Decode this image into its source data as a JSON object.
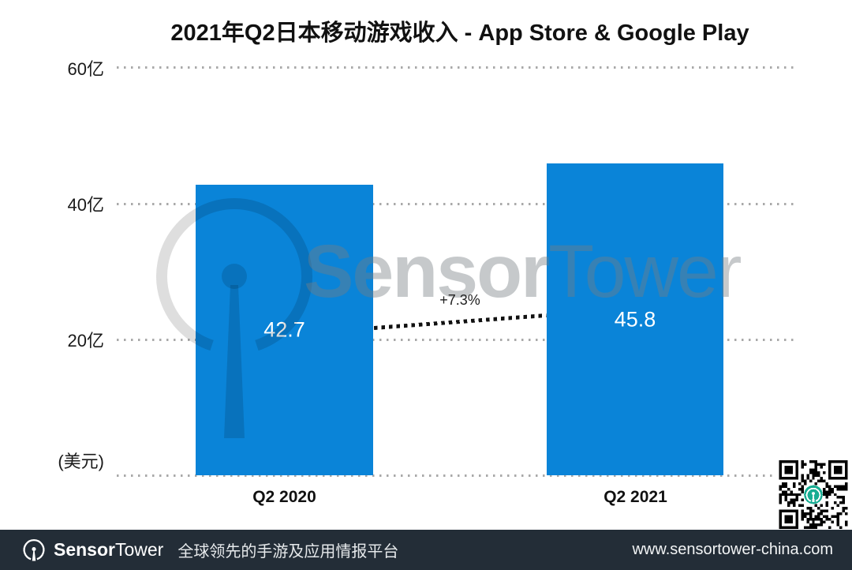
{
  "title": "2021年Q2日本移动游戏收入 - App Store & Google Play",
  "chart_data": {
    "type": "bar",
    "categories": [
      "Q2 2020",
      "Q2 2021"
    ],
    "values": [
      42.7,
      45.8
    ],
    "title": "2021年Q2日本移动游戏收入 - App Store & Google Play",
    "xlabel": "",
    "ylabel": "(美元)",
    "ylim": [
      0,
      60
    ],
    "yticks": [
      "60亿",
      "40亿",
      "20亿"
    ],
    "y_unit_label": "(美元)",
    "grid": "dotted horizontal",
    "growth_annotation": "+7.3%",
    "bar_color": "#0a84d8",
    "value_label_color": "#ffffff"
  },
  "watermark": {
    "brand_bold": "Sensor",
    "brand_light": "Tower"
  },
  "footer": {
    "brand_bold": "Sensor",
    "brand_light": "Tower",
    "tagline": "全球领先的手游及应用情报平台",
    "url": "www.sensortower-china.com",
    "bg_color": "#232d37"
  },
  "qr": {
    "center_logo_color": "#18ad93"
  }
}
